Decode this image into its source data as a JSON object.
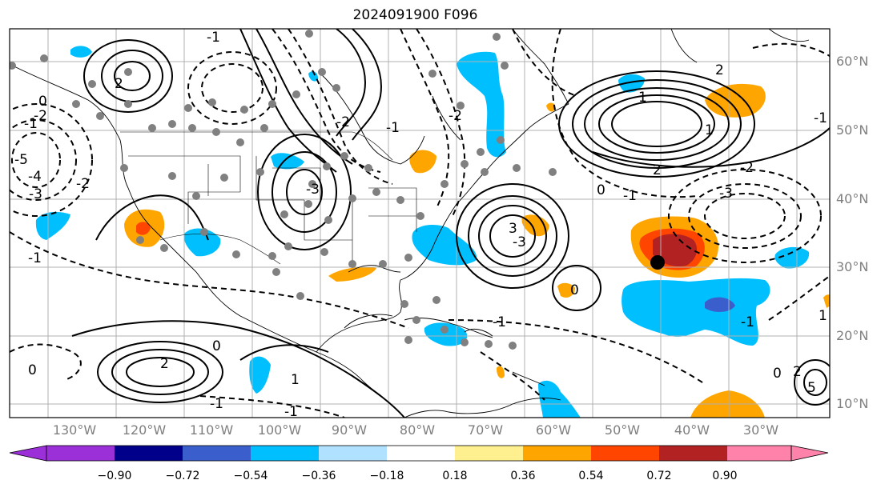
{
  "title": "2024091900 F096",
  "lat_labels": [
    "60°N",
    "50°N",
    "40°N",
    "30°N",
    "20°N",
    "10°N"
  ],
  "lon_labels": [
    "130°W",
    "120°W",
    "110°W",
    "100°W",
    "90°W",
    "80°W",
    "70°W",
    "60°W",
    "50°W",
    "40°W",
    "30°W"
  ],
  "colorbar": {
    "ticks": [
      "−0.90",
      "−0.72",
      "−0.54",
      "−0.36",
      "−0.18",
      "0.18",
      "0.36",
      "0.54",
      "0.72",
      "0.90"
    ],
    "colors": [
      "#9b30d9",
      "#00008b",
      "#3a5fcd",
      "#00bfff",
      "#b0e2ff",
      "#ffffff",
      "#fff08f",
      "#ffa500",
      "#ff4500",
      "#b22222",
      "#ff82ab"
    ]
  },
  "contour_labels": [
    "1",
    "2",
    "-1",
    "-2",
    "-3",
    "-4",
    "-5",
    "2",
    "-1",
    "0",
    "-1",
    "-2",
    "-3",
    "2",
    "-3",
    "3",
    "5",
    "0",
    "0",
    "2",
    "-2",
    "-3",
    "-2",
    "-1",
    "-1",
    "0",
    "2",
    "0",
    "-1",
    "0",
    "-1",
    "-1",
    "-1",
    "1",
    "1",
    "-1",
    "-2",
    "1"
  ]
}
